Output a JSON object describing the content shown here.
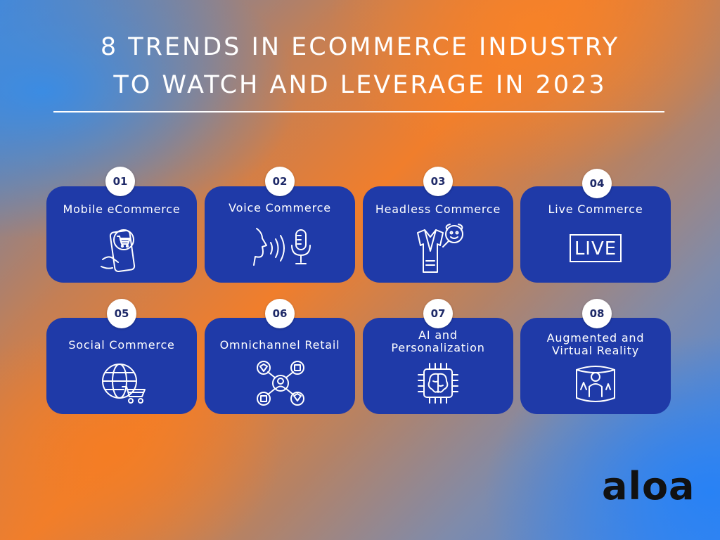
{
  "title": {
    "line1": "8 TRENDS IN ECOMMERCE INDUSTRY",
    "line2": "TO WATCH AND LEVERAGE IN 2023"
  },
  "trends": [
    {
      "number": "01",
      "label": "Mobile eCommerce",
      "icon": "mobile-shopping-icon"
    },
    {
      "number": "02",
      "label": "Voice Commerce",
      "icon": "voice-microphone-icon"
    },
    {
      "number": "03",
      "label": "Headless Commerce",
      "icon": "headless-mannequin-icon"
    },
    {
      "number": "04",
      "label": "Live Commerce",
      "icon": "live-sign-icon",
      "icon_text": "LIVE"
    },
    {
      "number": "05",
      "label": "Social Commerce",
      "icon": "globe-cart-icon"
    },
    {
      "number": "06",
      "label": "Omnichannel Retail",
      "icon": "omnichannel-network-icon"
    },
    {
      "number": "07",
      "label_line1": "AI and",
      "label_line2": "Personalization",
      "icon": "ai-brain-chip-icon"
    },
    {
      "number": "08",
      "label_line1": "Augmented and",
      "label_line2": "Virtual Reality",
      "icon": "vr-person-icon"
    }
  ],
  "brand": {
    "logo_text": "aloa"
  },
  "colors": {
    "card": "#1f3aa8",
    "badge": "#ffffff",
    "text": "#ffffff",
    "logo": "#111111"
  }
}
